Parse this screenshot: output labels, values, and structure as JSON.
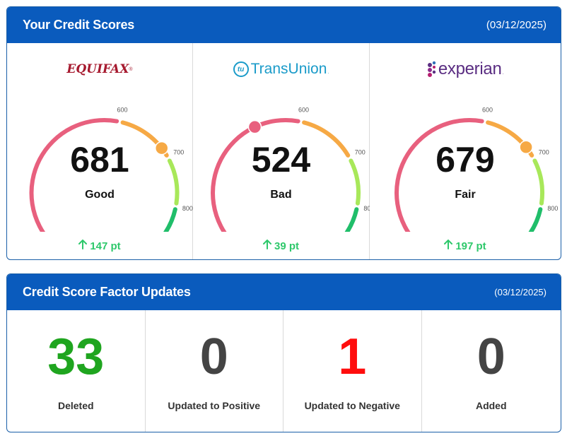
{
  "scores_card": {
    "title": "Your Credit Scores",
    "date": "(03/12/2025)",
    "bureaus": [
      {
        "name": "Equifax",
        "logo_text": "EQUIFAX",
        "logo_mark": "®",
        "score": "681",
        "score_value": 681,
        "rating": "Good",
        "change": "147 pt",
        "ticks": [
          "600",
          "700",
          "800"
        ]
      },
      {
        "name": "TransUnion",
        "logo_text": "TransUnion",
        "logo_mark": "tu",
        "logo_dot": ".",
        "score": "524",
        "score_value": 524,
        "rating": "Bad",
        "change": "39 pt",
        "ticks": [
          "600",
          "700",
          "800"
        ]
      },
      {
        "name": "Experian",
        "logo_text": "experian",
        "logo_dot": ".",
        "score": "679",
        "score_value": 679,
        "rating": "Fair",
        "change": "197 pt",
        "ticks": [
          "600",
          "700",
          "800"
        ]
      }
    ]
  },
  "factors_card": {
    "title": "Credit Score Factor Updates",
    "date": "(03/12/2025)",
    "items": [
      {
        "value": "33",
        "label": "Deleted",
        "color": "#1fa51f"
      },
      {
        "value": "0",
        "label": "Updated to Positive",
        "color": "#444444"
      },
      {
        "value": "1",
        "label": "Updated to Negative",
        "color": "#ff0d0d"
      },
      {
        "value": "0",
        "label": "Added",
        "color": "#444444"
      }
    ]
  },
  "gauge_colors": {
    "poor": "#e8607e",
    "fair": "#f6a945",
    "good": "#a8e85a",
    "excellent": "#20be6a"
  },
  "gauge_scale": {
    "min": 300,
    "max": 850,
    "segments": [
      300,
      600,
      700,
      780,
      850
    ]
  },
  "icons": {
    "change": "arrow-up-icon"
  }
}
